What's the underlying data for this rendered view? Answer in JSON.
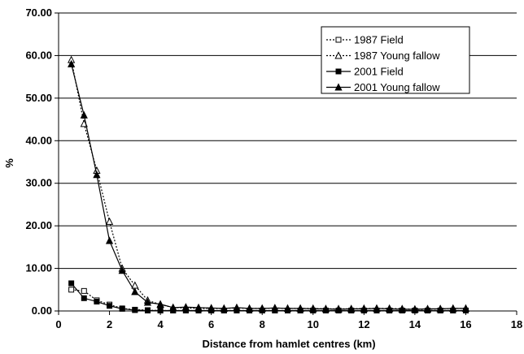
{
  "chart_data": {
    "type": "line",
    "title": "",
    "xlabel": "Distance from hamlet centres (km)",
    "ylabel": "%",
    "xlim": [
      0,
      18
    ],
    "ylim": [
      0,
      70
    ],
    "x_ticks": [
      0,
      2,
      4,
      6,
      8,
      10,
      12,
      14,
      16,
      18
    ],
    "y_ticks": [
      "0.00",
      "10.00",
      "20.00",
      "30.00",
      "40.00",
      "50.00",
      "60.00",
      "70.00"
    ],
    "grid": "horizontal major gridlines",
    "legend_position": "top-right",
    "x": [
      0.5,
      1.0,
      1.5,
      2.0,
      2.5,
      3.0,
      3.5,
      4.0,
      4.5,
      5.0,
      5.5,
      6.0,
      6.5,
      7.0,
      7.5,
      8.0,
      8.5,
      9.0,
      9.5,
      10.0,
      10.5,
      11.0,
      11.5,
      12.0,
      12.5,
      13.0,
      13.5,
      14.0,
      14.5,
      15.0,
      15.5,
      16.0
    ],
    "series": [
      {
        "name": "1987 Field",
        "marker": "open-square",
        "line": "dotted",
        "values": [
          5.0,
          4.7,
          2.5,
          1.5,
          0.6,
          0.3,
          0.2,
          0.1,
          0.1,
          0.1,
          0.1,
          0.1,
          0.1,
          0.1,
          0.1,
          0.1,
          0.1,
          0.1,
          0.1,
          0.1,
          0.1,
          0.1,
          0.1,
          0.1,
          0.1,
          0.1,
          0.1,
          0.1,
          0.1,
          0.1,
          0.1,
          0.1
        ]
      },
      {
        "name": "1987 Young fallow",
        "marker": "open-triangle",
        "line": "dotted",
        "values": [
          59.0,
          44.0,
          33.0,
          21.0,
          10.0,
          6.0,
          2.5,
          1.5,
          0.8,
          0.7,
          0.6,
          0.6,
          0.6,
          0.7,
          0.6,
          0.6,
          0.7,
          0.6,
          0.6,
          0.6,
          0.5,
          0.5,
          0.5,
          0.6,
          0.6,
          0.6,
          0.5,
          0.4,
          0.4,
          0.5,
          0.6,
          0.6
        ]
      },
      {
        "name": "2001 Field",
        "marker": "filled-square",
        "line": "solid",
        "values": [
          6.5,
          3.0,
          2.2,
          1.2,
          0.5,
          0.2,
          0.1,
          0.1,
          0.1,
          0.1,
          0.1,
          0.1,
          0.1,
          0.1,
          0.1,
          0.1,
          0.1,
          0.1,
          0.1,
          0.1,
          0.1,
          0.1,
          0.1,
          0.1,
          0.1,
          0.1,
          0.1,
          0.1,
          0.1,
          0.1,
          0.1,
          0.1
        ]
      },
      {
        "name": "2001 Young fallow",
        "marker": "filled-triangle",
        "line": "solid",
        "values": [
          58.0,
          46.0,
          32.0,
          16.5,
          9.5,
          4.5,
          2.0,
          1.6,
          0.8,
          0.9,
          0.8,
          0.7,
          0.6,
          0.8,
          0.6,
          0.6,
          0.7,
          0.6,
          0.6,
          0.5,
          0.5,
          0.4,
          0.5,
          0.5,
          0.6,
          0.5,
          0.4,
          0.4,
          0.5,
          0.5,
          0.6,
          0.6
        ]
      }
    ]
  }
}
